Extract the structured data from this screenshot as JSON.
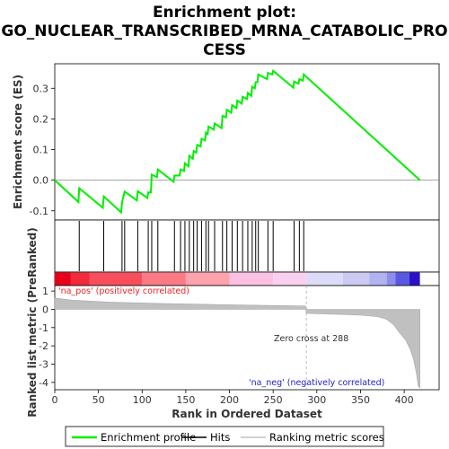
{
  "chart_data": {
    "type": "line",
    "title_line1": "Enrichment plot:",
    "title_line2": "GO_NUCLEAR_TRANSCRIBED_MRNA_CATABOLIC_PRO",
    "title_line3": "CESS",
    "es_panel": {
      "ylabel": "Enrichment score (ES)",
      "ylim": [
        -0.13,
        0.38
      ],
      "yticks": [
        -0.1,
        0.0,
        0.1,
        0.2,
        0.3
      ],
      "ytick_labels": [
        "-0.1",
        "0.0",
        "0.1",
        "0.2",
        "0.3"
      ],
      "line_color": "#00ee00",
      "points": [
        [
          0,
          0.0
        ],
        [
          27,
          -0.071
        ],
        [
          28,
          -0.026
        ],
        [
          55,
          -0.09
        ],
        [
          56,
          -0.053
        ],
        [
          76,
          -0.105
        ],
        [
          77,
          -0.072
        ],
        [
          80,
          -0.037
        ],
        [
          94,
          -0.066
        ],
        [
          95,
          -0.036
        ],
        [
          106,
          -0.058
        ],
        [
          107,
          -0.04
        ],
        [
          110,
          -0.04
        ],
        [
          111,
          0.018
        ],
        [
          117,
          0.01
        ],
        [
          118,
          0.035
        ],
        [
          136,
          -0.005
        ],
        [
          137,
          0.015
        ],
        [
          143,
          0.015
        ],
        [
          144,
          0.035
        ],
        [
          148,
          0.03
        ],
        [
          149,
          0.055
        ],
        [
          153,
          0.045
        ],
        [
          154,
          0.08
        ],
        [
          158,
          0.07
        ],
        [
          159,
          0.095
        ],
        [
          162,
          0.09
        ],
        [
          163,
          0.115
        ],
        [
          167,
          0.11
        ],
        [
          168,
          0.135
        ],
        [
          172,
          0.13
        ],
        [
          173,
          0.155
        ],
        [
          175,
          0.15
        ],
        [
          176,
          0.175
        ],
        [
          182,
          0.165
        ],
        [
          183,
          0.185
        ],
        [
          191,
          0.17
        ],
        [
          192,
          0.21
        ],
        [
          196,
          0.205
        ],
        [
          197,
          0.23
        ],
        [
          202,
          0.22
        ],
        [
          203,
          0.245
        ],
        [
          208,
          0.235
        ],
        [
          209,
          0.26
        ],
        [
          214,
          0.25
        ],
        [
          215,
          0.272
        ],
        [
          220,
          0.265
        ],
        [
          221,
          0.285
        ],
        [
          225,
          0.275
        ],
        [
          226,
          0.305
        ],
        [
          229,
          0.3
        ],
        [
          230,
          0.32
        ],
        [
          232,
          0.32
        ],
        [
          233,
          0.345
        ],
        [
          243,
          0.33
        ],
        [
          244,
          0.35
        ],
        [
          249,
          0.345
        ],
        [
          250,
          0.357
        ],
        [
          273,
          0.302
        ],
        [
          274,
          0.322
        ],
        [
          279,
          0.315
        ],
        [
          280,
          0.33
        ],
        [
          284,
          0.325
        ],
        [
          285,
          0.345
        ],
        [
          418,
          0.0
        ]
      ]
    },
    "hits": [
      28,
      56,
      77,
      80,
      95,
      107,
      111,
      118,
      137,
      144,
      149,
      154,
      159,
      163,
      168,
      173,
      176,
      183,
      192,
      197,
      203,
      209,
      215,
      221,
      226,
      230,
      233,
      244,
      250,
      274,
      280,
      285
    ],
    "metric_panel": {
      "ylabel": "Ranked list metric (PreRanked)",
      "ylim": [
        -4.4,
        1.3
      ],
      "yticks": [
        1,
        0,
        -1,
        -2,
        -3,
        -4
      ],
      "ytick_labels": [
        "1",
        "0",
        "-1",
        "-2",
        "-3",
        "-4"
      ],
      "metric_points": [
        [
          0,
          0.62
        ],
        [
          20,
          0.5
        ],
        [
          60,
          0.4
        ],
        [
          120,
          0.32
        ],
        [
          200,
          0.25
        ],
        [
          287,
          0.18
        ],
        [
          288,
          -0.22
        ],
        [
          330,
          -0.28
        ],
        [
          350,
          -0.32
        ],
        [
          370,
          -0.4
        ],
        [
          380,
          -0.55
        ],
        [
          388,
          -0.85
        ],
        [
          395,
          -1.3
        ],
        [
          402,
          -1.7
        ],
        [
          407,
          -2.2
        ],
        [
          411,
          -2.8
        ],
        [
          414,
          -3.5
        ],
        [
          416,
          -4.2
        ],
        [
          418,
          -4.3
        ]
      ],
      "pos_label": "'na_pos' (positively correlated)",
      "neg_label": "'na_neg' (negatively correlated)",
      "zero_cross_label": "Zero cross at 288",
      "zero_cross": 288
    },
    "xlabel": "Rank in Ordered Dataset",
    "xlim": [
      0,
      440
    ],
    "xticks": [
      0,
      50,
      100,
      150,
      200,
      250,
      300,
      350,
      400
    ],
    "xtick_labels": [
      "0",
      "50",
      "100",
      "150",
      "200",
      "250",
      "300",
      "350",
      "400"
    ],
    "heat_segments": [
      {
        "from": 0,
        "to": 18,
        "color": "#e8001a"
      },
      {
        "from": 18,
        "to": 40,
        "color": "#f22a3a"
      },
      {
        "from": 40,
        "to": 100,
        "color": "#f84e5c"
      },
      {
        "from": 100,
        "to": 150,
        "color": "#fb7a86"
      },
      {
        "from": 150,
        "to": 200,
        "color": "#fca3ad"
      },
      {
        "from": 200,
        "to": 250,
        "color": "#fcc0e4"
      },
      {
        "from": 250,
        "to": 288,
        "color": "#fad0f0"
      },
      {
        "from": 288,
        "to": 330,
        "color": "#dcdcf8"
      },
      {
        "from": 330,
        "to": 360,
        "color": "#cacaf4"
      },
      {
        "from": 360,
        "to": 380,
        "color": "#b2b2f0"
      },
      {
        "from": 380,
        "to": 390,
        "color": "#8e8eea"
      },
      {
        "from": 390,
        "to": 406,
        "color": "#5858e0"
      },
      {
        "from": 406,
        "to": 418,
        "color": "#2a10cc"
      }
    ],
    "legend": [
      {
        "label": "Enrichment profile",
        "kind": "line",
        "color": "#00ee00"
      },
      {
        "label": "Hits",
        "kind": "line",
        "color": "#000000"
      },
      {
        "label": "Ranking metric scores",
        "kind": "line",
        "color": "#c0c0c0"
      }
    ]
  }
}
